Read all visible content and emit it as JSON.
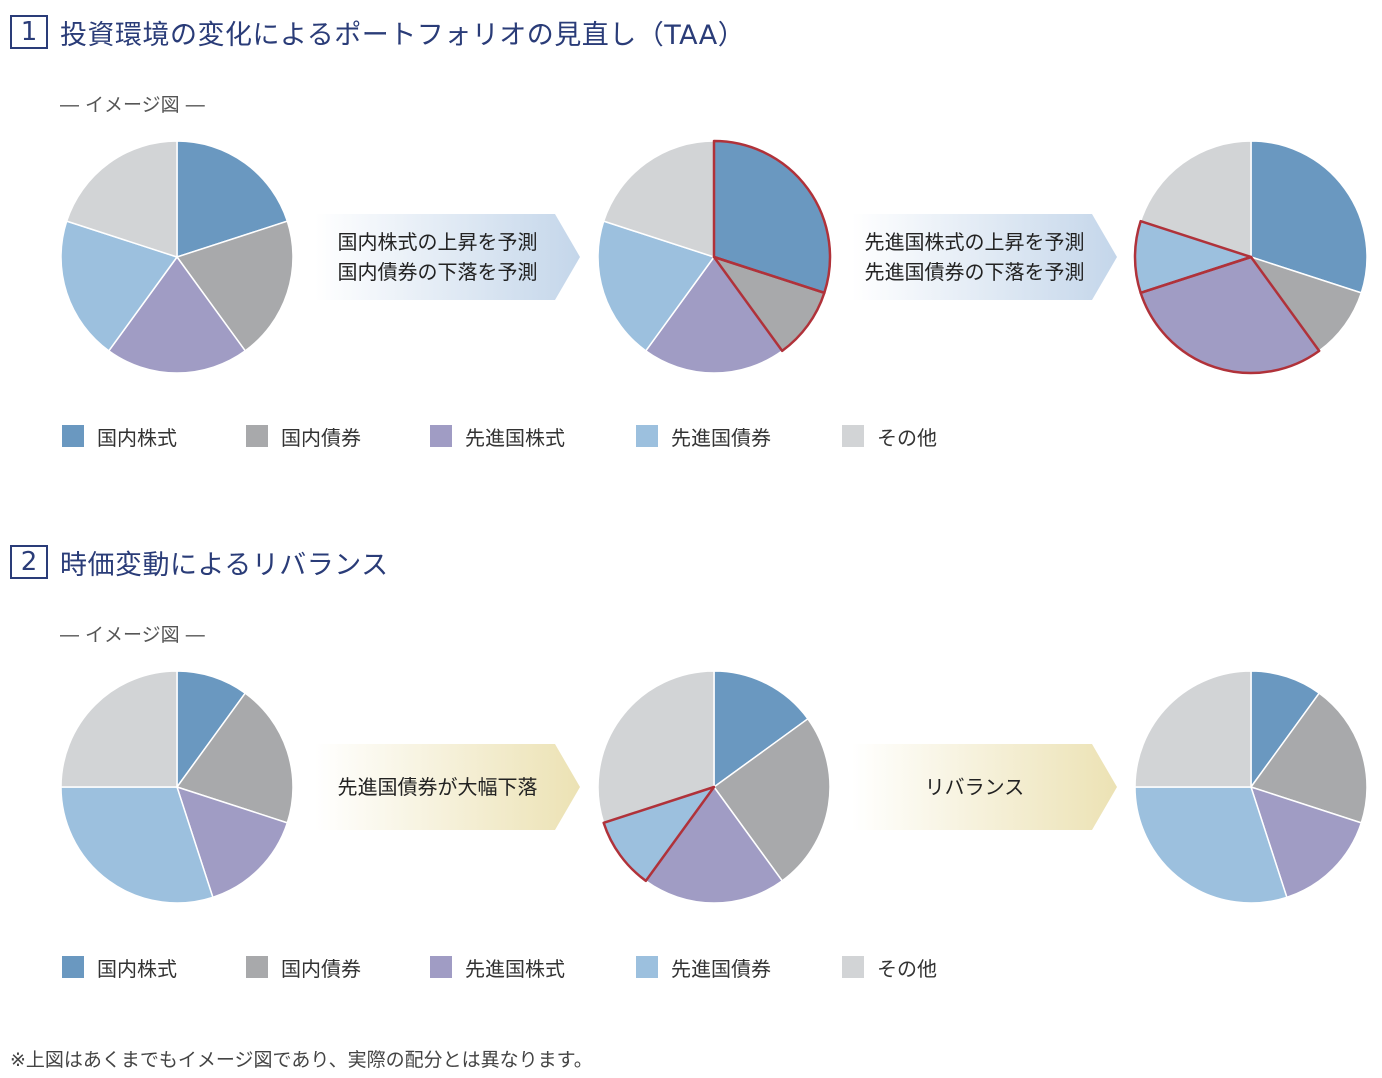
{
  "section1": {
    "number": "1",
    "title": "投資環境の変化によるポートフォリオの見直し（TAA）",
    "image_label": "― イメージ図 ―",
    "arrow1": {
      "line1": "国内株式の上昇を予測",
      "line2": "国内債券の下落を予測"
    },
    "arrow2": {
      "line1": "先進国株式の上昇を予測",
      "line2": "先進国債券の下落を予測"
    }
  },
  "section2": {
    "number": "2",
    "title": "時価変動によるリバランス",
    "image_label": "― イメージ図 ―",
    "arrow1": {
      "line1": "先進国債券が大幅下落",
      "line2": ""
    },
    "arrow2": {
      "line1": "リバランス",
      "line2": ""
    }
  },
  "legend": [
    {
      "label": "国内株式",
      "color": "#6a98c0"
    },
    {
      "label": "国内債券",
      "color": "#a8a9ab"
    },
    {
      "label": "先進国株式",
      "color": "#a09cc4"
    },
    {
      "label": "先進国債券",
      "color": "#9cc0de"
    },
    {
      "label": "その他",
      "color": "#d2d4d6"
    }
  ],
  "highlight_color": "#b0323a",
  "arrow_colors": {
    "blue": "#c4d6ea",
    "yellow": "#ece2b4"
  },
  "chart_data": [
    {
      "type": "pie",
      "categories": [
        "国内株式",
        "国内債券",
        "先進国株式",
        "先進国債券",
        "その他"
      ],
      "values": [
        20,
        20,
        20,
        20,
        20
      ],
      "highlight": []
    },
    {
      "type": "pie",
      "categories": [
        "国内株式",
        "国内債券",
        "先進国株式",
        "先進国債券",
        "その他"
      ],
      "values": [
        30,
        10,
        20,
        20,
        20
      ],
      "highlight": [
        "国内株式",
        "国内債券"
      ]
    },
    {
      "type": "pie",
      "categories": [
        "国内株式",
        "国内債券",
        "先進国株式",
        "先進国債券",
        "その他"
      ],
      "values": [
        30,
        10,
        30,
        10,
        20
      ],
      "highlight": [
        "先進国株式",
        "先進国債券"
      ]
    },
    {
      "type": "pie",
      "categories": [
        "国内株式",
        "国内債券",
        "先進国株式",
        "先進国債券",
        "その他"
      ],
      "values": [
        10,
        20,
        15,
        30,
        25
      ],
      "highlight": []
    },
    {
      "type": "pie",
      "categories": [
        "国内株式",
        "国内債券",
        "先進国株式",
        "先進国債券",
        "その他"
      ],
      "values": [
        15,
        25,
        20,
        10,
        30
      ],
      "highlight": [
        "先進国債券"
      ]
    },
    {
      "type": "pie",
      "categories": [
        "国内株式",
        "国内債券",
        "先進国株式",
        "先進国債券",
        "その他"
      ],
      "values": [
        10,
        20,
        15,
        30,
        25
      ],
      "highlight": []
    }
  ],
  "footnote": "※上図はあくまでもイメージ図であり、実際の配分とは異なります。"
}
